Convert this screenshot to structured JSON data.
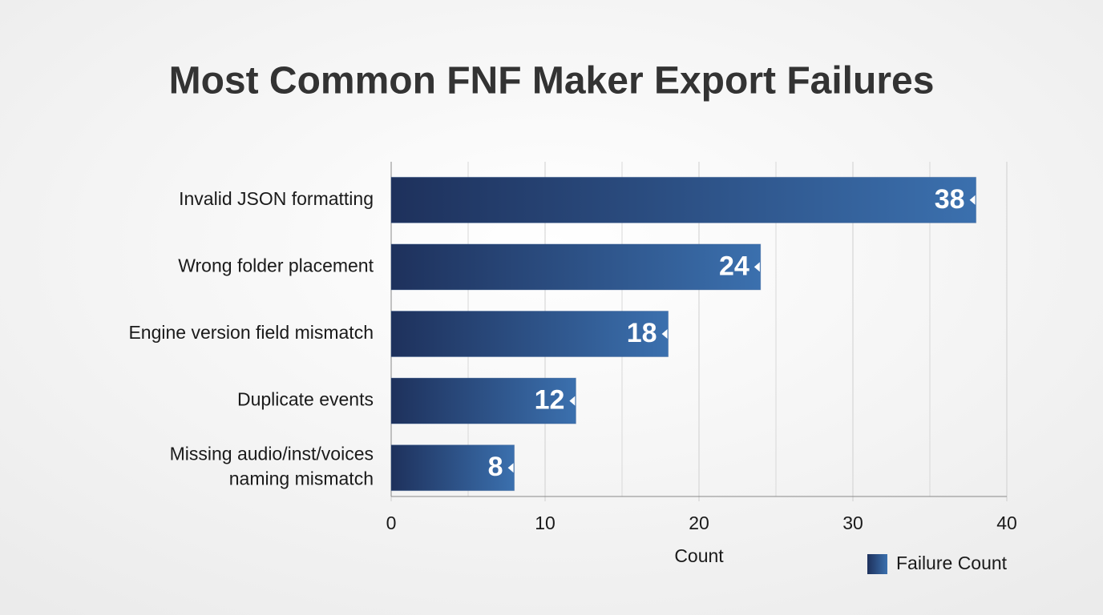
{
  "chart_data": {
    "type": "barh",
    "title": "Most Common FNF Maker Export Failures",
    "categories": [
      "Invalid JSON formatting",
      "Wrong folder placement",
      "Engine version field mismatch",
      "Duplicate events",
      "Missing audio/inst/voices\nnaming mismatch"
    ],
    "series": [
      {
        "name": "Failure Count",
        "color": "#2d5590",
        "values": [
          38,
          24,
          18,
          12,
          8
        ]
      }
    ],
    "x_label": "Count",
    "xlim": [
      0,
      40
    ],
    "xticks": [
      0,
      10,
      20,
      30,
      40
    ],
    "xminorticks": [
      5,
      15,
      25,
      35
    ],
    "grid": true,
    "legend": "bottom-right"
  }
}
